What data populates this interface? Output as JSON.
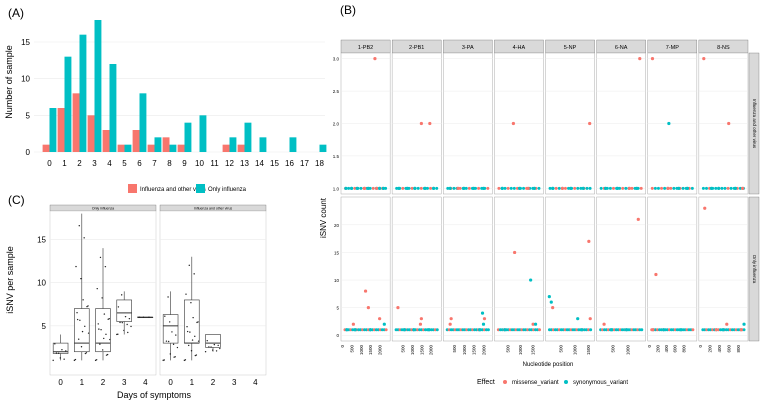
{
  "panels": {
    "a": "(A)",
    "b": "(B)",
    "c": "(C)"
  },
  "colors": {
    "red": "#f8766d",
    "teal": "#00bfc4",
    "strip": "#d9d9d9",
    "grid": "#ebebeb",
    "box_fill": "#ffffff"
  },
  "chart_data": [
    {
      "id": "A",
      "type": "bar",
      "title": "",
      "ylabel": "Number of sample",
      "xlabel": "",
      "ylim": [
        0,
        18
      ],
      "yticks": [
        0,
        5,
        10,
        15
      ],
      "categories": [
        "0",
        "1",
        "2",
        "3",
        "4",
        "5",
        "6",
        "7",
        "8",
        "9",
        "10",
        "11",
        "12",
        "13",
        "14",
        "15",
        "16",
        "17",
        "18"
      ],
      "series": [
        {
          "name": "Influenza and other virus",
          "color": "#f8766d",
          "values": [
            1,
            6,
            8,
            5,
            3,
            1,
            3,
            1,
            2,
            1,
            0,
            0,
            1,
            1,
            0,
            0,
            0,
            0,
            0
          ]
        },
        {
          "name": "Only influenza",
          "color": "#00bfc4",
          "values": [
            6,
            13,
            16,
            18,
            12,
            1,
            8,
            2,
            1,
            4,
            5,
            0,
            2,
            4,
            2,
            0,
            2,
            0,
            1
          ]
        }
      ],
      "legend": [
        "Influenza and other virus",
        "Only influenza"
      ]
    },
    {
      "id": "B",
      "type": "scatter",
      "xlabel": "Nucleotide position",
      "ylabel": "iSNV count",
      "segments": [
        {
          "label": "1-PB2",
          "max": 2300,
          "ticks": [
            "0",
            "500",
            "1000",
            "1500",
            "2000"
          ]
        },
        {
          "label": "2-PB1",
          "max": 2300,
          "ticks": [
            "500",
            "1000",
            "1500",
            "2000"
          ]
        },
        {
          "label": "3-PA",
          "max": 2200,
          "ticks": [
            "500",
            "1000",
            "1500",
            "2000"
          ]
        },
        {
          "label": "4-HA",
          "max": 1750,
          "ticks": [
            "500",
            "1000",
            "1500"
          ]
        },
        {
          "label": "5-NP",
          "max": 1550,
          "ticks": [
            "500",
            "1000",
            "1500"
          ]
        },
        {
          "label": "6-NA",
          "max": 1450,
          "ticks": [
            "500",
            "1000"
          ]
        },
        {
          "label": "7-MP",
          "max": 1000,
          "ticks": [
            "0",
            "200",
            "400",
            "600",
            "800"
          ]
        },
        {
          "label": "8-NS",
          "max": 900,
          "ticks": [
            "0",
            "200",
            "400",
            "600",
            "800"
          ]
        }
      ],
      "rows": [
        {
          "label": "Influenza and other virus",
          "ylim": [
            1,
            3
          ],
          "yticks": [
            "1.0",
            "1.5",
            "2.0",
            "2.5",
            "3.0"
          ],
          "missense": [
            [
              0,
              1650,
              3.0
            ],
            [
              1,
              1400,
              2.0
            ],
            [
              1,
              1850,
              2.0
            ],
            [
              3,
              650,
              2.0
            ],
            [
              4,
              1480,
              2.0
            ],
            [
              5,
              1350,
              3.0
            ],
            [
              6,
              40,
              3.0
            ],
            [
              7,
              40,
              3.0
            ],
            [
              7,
              560,
              2.0
            ],
            [
              0,
              1100,
              1.0
            ],
            [
              0,
              1750,
              1.0
            ],
            [
              2,
              600,
              1.0
            ],
            [
              3,
              1250,
              1.0
            ],
            [
              4,
              500,
              1.0
            ],
            [
              5,
              1000,
              1.0
            ],
            [
              6,
              400,
              1.0
            ],
            [
              7,
              850,
              1.0
            ]
          ],
          "synonymous": [
            [
              6,
              420,
              2.0
            ],
            [
              0,
              100,
              1.0
            ],
            [
              0,
              400,
              1.0
            ],
            [
              0,
              700,
              1.0
            ],
            [
              0,
              1300,
              1.0
            ],
            [
              0,
              1900,
              1.0
            ],
            [
              0,
              2100,
              1.0
            ],
            [
              1,
              200,
              1.0
            ],
            [
              1,
              650,
              1.0
            ],
            [
              1,
              1050,
              1.0
            ],
            [
              1,
              1600,
              1.0
            ],
            [
              1,
              2050,
              1.0
            ],
            [
              2,
              200,
              1.0
            ],
            [
              2,
              900,
              1.0
            ],
            [
              2,
              1400,
              1.0
            ],
            [
              2,
              1900,
              1.0
            ],
            [
              3,
              200,
              1.0
            ],
            [
              3,
              900,
              1.0
            ],
            [
              3,
              1500,
              1.0
            ],
            [
              4,
              150,
              1.0
            ],
            [
              4,
              800,
              1.0
            ],
            [
              4,
              1250,
              1.0
            ],
            [
              5,
              200,
              1.0
            ],
            [
              5,
              600,
              1.0
            ],
            [
              5,
              1250,
              1.0
            ],
            [
              6,
              650,
              1.0
            ],
            [
              6,
              850,
              1.0
            ],
            [
              7,
              200,
              1.0
            ],
            [
              7,
              350,
              1.0
            ],
            [
              7,
              700,
              1.0
            ]
          ]
        },
        {
          "label": "Only influenza",
          "ylim": [
            0,
            24
          ],
          "yticks": [
            "0",
            "5",
            "10",
            "15",
            "20"
          ],
          "missense": [
            [
              0,
              1150,
              8
            ],
            [
              0,
              1300,
              5
            ],
            [
              0,
              1900,
              3
            ],
            [
              0,
              500,
              2
            ],
            [
              1,
              150,
              5
            ],
            [
              1,
              1400,
              3
            ],
            [
              1,
              1350,
              2
            ],
            [
              2,
              250,
              3
            ],
            [
              2,
              200,
              2
            ],
            [
              2,
              1950,
              3
            ],
            [
              3,
              700,
              15
            ],
            [
              3,
              1450,
              2
            ],
            [
              4,
              150,
              5
            ],
            [
              4,
              1450,
              17
            ],
            [
              4,
              1500,
              3
            ],
            [
              5,
              1300,
              21
            ],
            [
              5,
              150,
              2
            ],
            [
              6,
              120,
              11
            ],
            [
              6,
              50,
              1
            ],
            [
              7,
              60,
              23
            ],
            [
              7,
              300,
              1
            ],
            [
              7,
              520,
              2
            ],
            [
              7,
              820,
              1
            ]
          ],
          "synonymous": [
            [
              0,
              150,
              1
            ],
            [
              0,
              600,
              1
            ],
            [
              0,
              1400,
              1
            ],
            [
              0,
              2150,
              2
            ],
            [
              1,
              500,
              1
            ],
            [
              1,
              1000,
              1
            ],
            [
              1,
              1800,
              1
            ],
            [
              2,
              1850,
              4
            ],
            [
              2,
              1900,
              2
            ],
            [
              2,
              1700,
              1
            ],
            [
              3,
              1350,
              10
            ],
            [
              3,
              1550,
              2
            ],
            [
              3,
              300,
              1
            ],
            [
              4,
              30,
              7
            ],
            [
              4,
              100,
              6
            ],
            [
              4,
              1050,
              3
            ],
            [
              4,
              1200,
              1
            ],
            [
              5,
              400,
              1
            ],
            [
              5,
              900,
              1
            ],
            [
              6,
              300,
              1
            ],
            [
              6,
              700,
              1
            ],
            [
              7,
              880,
              2
            ],
            [
              7,
              450,
              1
            ]
          ],
          "zero_missense_count": 40,
          "zero_synonymous_count": 70
        }
      ],
      "legend": {
        "title": "Effect",
        "items": [
          "missense_variant",
          "synonymous_variant"
        ]
      }
    },
    {
      "id": "C",
      "type": "box",
      "xlabel": "Days of symptoms",
      "ylabel": "iSNV per sample",
      "ylim": [
        0,
        19
      ],
      "yticks": [
        5,
        10,
        15
      ],
      "facets": [
        {
          "label": "Only influenza",
          "categories": [
            "0",
            "1",
            "2",
            "3",
            "4"
          ],
          "boxes": [
            {
              "x": "0",
              "min": 1,
              "q1": 1.8,
              "median": 2,
              "q3": 3,
              "max": 4
            },
            {
              "x": "1",
              "min": 1,
              "q1": 2,
              "median": 3,
              "q3": 7,
              "max": 18
            },
            {
              "x": "2",
              "min": 1,
              "q1": 2,
              "median": 3,
              "q3": 7,
              "max": 14
            },
            {
              "x": "3",
              "min": 4,
              "q1": 5.5,
              "median": 6.5,
              "q3": 8,
              "max": 9
            },
            {
              "x": "4",
              "min": 6,
              "q1": 6,
              "median": 6,
              "q3": 6,
              "max": 6
            }
          ]
        },
        {
          "label": "Influenza and other virus",
          "categories": [
            "0",
            "1",
            "2",
            "3",
            "4"
          ],
          "boxes": [
            {
              "x": "0",
              "min": 1,
              "q1": 3,
              "median": 5,
              "q3": 6.3,
              "max": 9
            },
            {
              "x": "1",
              "min": 1,
              "q1": 3,
              "median": 3,
              "q3": 8,
              "max": 13
            },
            {
              "x": "2",
              "min": 2,
              "q1": 2.5,
              "median": 3,
              "q3": 4,
              "max": 4
            }
          ]
        }
      ]
    }
  ]
}
